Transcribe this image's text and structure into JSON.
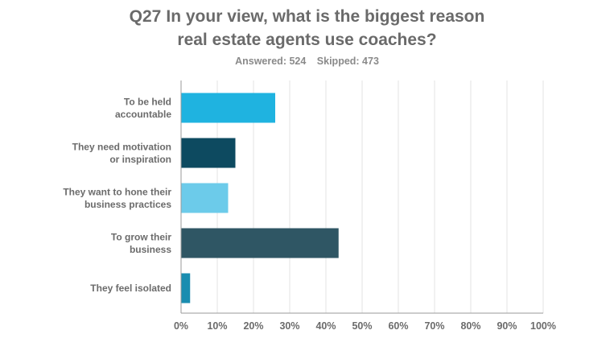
{
  "question": {
    "number": "Q27",
    "line1": "In your view, what is the biggest reason",
    "line2": "real estate agents use coaches?"
  },
  "stats": {
    "answered": "Answered: 524",
    "skipped": "Skipped: 473"
  },
  "chart_data": {
    "type": "bar",
    "orientation": "horizontal",
    "title": "Q27 In your view, what is the biggest reason real estate agents use coaches?",
    "categories": [
      [
        "To be held",
        "accountable"
      ],
      [
        "They need motivation",
        "or inspiration"
      ],
      [
        "They want to hone their",
        "business practices"
      ],
      [
        "To grow their",
        "business"
      ],
      [
        "They feel isolated"
      ]
    ],
    "values": [
      26,
      15,
      13,
      43.5,
      2.5
    ],
    "colors": [
      "#1fb3e0",
      "#0d4a60",
      "#6ccbea",
      "#2f5664",
      "#1a8db0"
    ],
    "xlim": [
      0,
      100
    ],
    "xticks": [
      "0%",
      "10%",
      "20%",
      "30%",
      "40%",
      "50%",
      "60%",
      "70%",
      "80%",
      "90%",
      "100%"
    ],
    "grid": true,
    "xlabel": "",
    "ylabel": ""
  }
}
